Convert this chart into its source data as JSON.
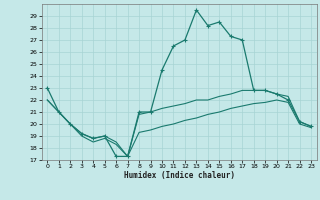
{
  "background_color": "#c5e8e8",
  "grid_color": "#a8d4d4",
  "line_color": "#1a7a6e",
  "xlabel": "Humidex (Indice chaleur)",
  "xlim": [
    -0.5,
    23.5
  ],
  "ylim": [
    17,
    30
  ],
  "yticks": [
    17,
    18,
    19,
    20,
    21,
    22,
    23,
    24,
    25,
    26,
    27,
    28,
    29
  ],
  "xticks": [
    0,
    1,
    2,
    3,
    4,
    5,
    6,
    7,
    8,
    9,
    10,
    11,
    12,
    13,
    14,
    15,
    16,
    17,
    18,
    19,
    20,
    21,
    22,
    23
  ],
  "curve1_x": [
    0,
    1,
    2,
    3,
    4,
    5,
    6,
    7,
    8,
    9,
    10,
    11,
    12,
    13,
    14,
    15,
    16,
    17,
    18,
    19,
    20,
    21,
    22,
    23
  ],
  "curve1_y": [
    23.0,
    21.0,
    20.0,
    19.2,
    18.8,
    19.0,
    17.3,
    17.3,
    21.0,
    21.0,
    24.5,
    26.5,
    27.0,
    29.5,
    28.2,
    28.5,
    27.3,
    27.0,
    22.8,
    22.8,
    22.5,
    22.0,
    20.2,
    19.8
  ],
  "curve2_x": [
    0,
    1,
    2,
    3,
    4,
    5,
    6,
    7,
    8,
    9,
    10,
    11,
    12,
    13,
    14,
    15,
    16,
    17,
    18,
    19,
    20,
    21,
    22,
    23
  ],
  "curve2_y": [
    22.0,
    21.0,
    20.0,
    19.2,
    18.8,
    19.0,
    18.5,
    17.3,
    20.8,
    21.0,
    21.3,
    21.5,
    21.7,
    22.0,
    22.0,
    22.3,
    22.5,
    22.8,
    22.8,
    22.8,
    22.5,
    22.3,
    20.2,
    19.8
  ],
  "curve3_x": [
    0,
    1,
    2,
    3,
    4,
    5,
    6,
    7,
    8,
    9,
    10,
    11,
    12,
    13,
    14,
    15,
    16,
    17,
    18,
    19,
    20,
    21,
    22,
    23
  ],
  "curve3_y": [
    22.0,
    21.0,
    20.0,
    19.0,
    18.5,
    18.8,
    18.3,
    17.3,
    19.3,
    19.5,
    19.8,
    20.0,
    20.3,
    20.5,
    20.8,
    21.0,
    21.3,
    21.5,
    21.7,
    21.8,
    22.0,
    21.8,
    20.0,
    19.7
  ]
}
